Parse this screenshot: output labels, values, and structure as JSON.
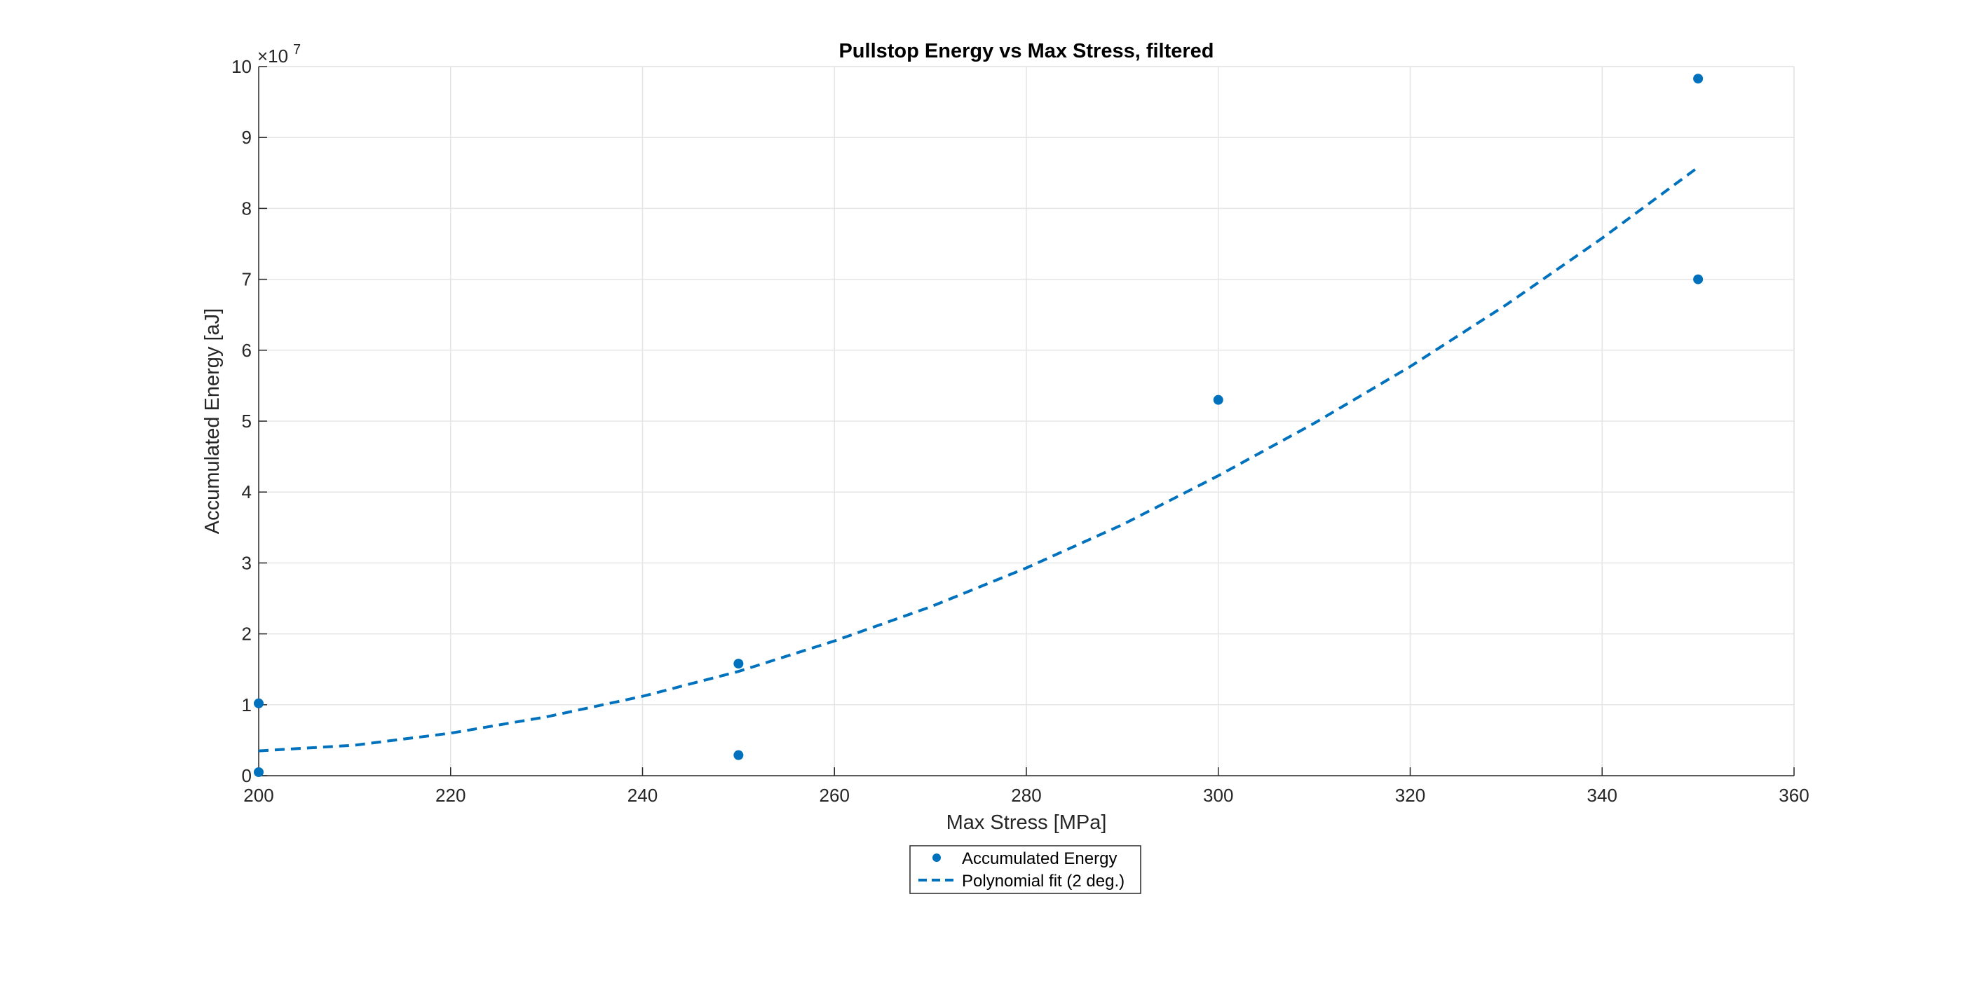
{
  "chart_data": {
    "type": "scatter",
    "title": "Pullstop Energy vs Max Stress, filtered",
    "xlabel": "Max Stress [MPa]",
    "ylabel": "Accumulated Energy [aJ]",
    "xlim": [
      200,
      360
    ],
    "ylim": [
      0,
      100000000
    ],
    "x_ticks": [
      "200",
      "220",
      "240",
      "260",
      "280",
      "300",
      "320",
      "340",
      "360"
    ],
    "y_ticks": [
      "0",
      "1",
      "2",
      "3",
      "4",
      "5",
      "6",
      "7",
      "8",
      "9",
      "10"
    ],
    "y_exponent": {
      "base": "×10",
      "power": "7"
    },
    "grid": true,
    "legend_position": "below-center",
    "series": [
      {
        "name": "Accumulated Energy",
        "type": "scatter",
        "color": "#0072BD",
        "x": [
          200,
          200,
          250,
          250,
          300,
          350,
          350
        ],
        "y": [
          10200000,
          500000,
          15800000,
          2900000,
          53000000,
          98300000,
          70000000
        ]
      },
      {
        "name": "Polynomial fit (2 deg.)",
        "type": "line",
        "style": "dashed",
        "color": "#0072BD",
        "x": [
          200,
          210,
          220,
          230,
          240,
          250,
          260,
          270,
          280,
          290,
          300,
          310,
          320,
          330,
          340,
          350
        ],
        "y": [
          3500000,
          4300000,
          6000000,
          8300000,
          11200000,
          14700000,
          19000000,
          23800000,
          29300000,
          35400000,
          42300000,
          49700000,
          57700000,
          66400000,
          75800000,
          85800000
        ]
      }
    ]
  }
}
